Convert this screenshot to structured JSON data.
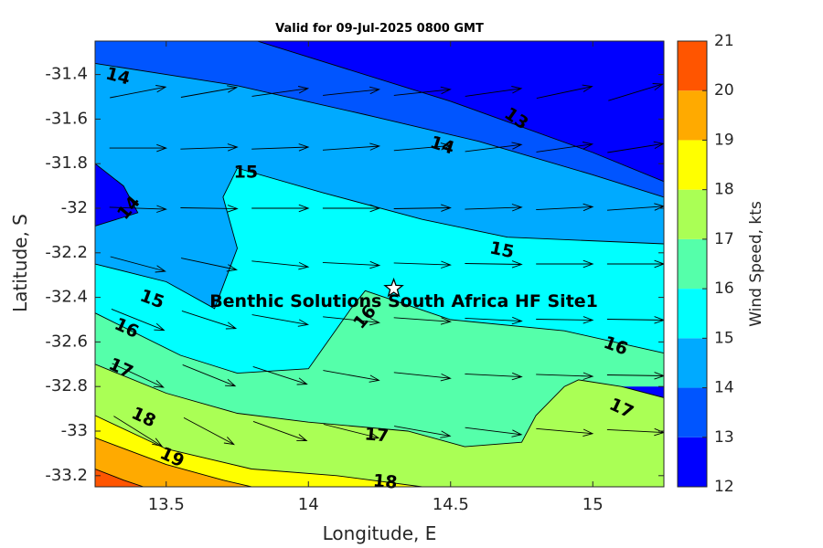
{
  "chart_data": {
    "type": "contour",
    "title": "Valid for 09-Jul-2025 0800 GMT",
    "xlabel": "Longitude, E",
    "ylabel": "Latitude, S",
    "colorbar_label": "Wind Speed, kts",
    "xlim": [
      13.25,
      15.25
    ],
    "ylim": [
      -33.25,
      -31.25
    ],
    "xticks": [
      13.5,
      14,
      14.5,
      15
    ],
    "xtick_labels": [
      "13.5",
      "14",
      "14.5",
      "15"
    ],
    "yticks": [
      -31.4,
      -31.6,
      -31.8,
      -32,
      -32.2,
      -32.4,
      -32.6,
      -32.8,
      -33,
      -33.2
    ],
    "ytick_labels": [
      "-31.4",
      "-31.6",
      "-31.8",
      "-32",
      "-32.2",
      "-32.4",
      "-32.6",
      "-32.8",
      "-33",
      "-33.2"
    ],
    "colorbar": {
      "range": [
        12,
        21
      ],
      "levels": [
        12,
        13,
        14,
        15,
        16,
        17,
        18,
        19,
        20,
        21
      ],
      "tick_labels": [
        "12",
        "13",
        "14",
        "15",
        "16",
        "17",
        "18",
        "19",
        "20",
        "21"
      ],
      "colors": [
        "#0000ff",
        "#0055ff",
        "#00aaff",
        "#00ffff",
        "#55ffaa",
        "#aaff55",
        "#ffff00",
        "#ffaa00",
        "#ff5500"
      ]
    },
    "regions": [
      {
        "band": [
          13,
          14
        ],
        "polygon": [
          [
            13.25,
            -31.25
          ],
          [
            13.82,
            -31.25
          ],
          [
            14.5,
            -31.52
          ],
          [
            15.0,
            -31.75
          ],
          [
            15.25,
            -31.88
          ],
          [
            15.25,
            -32.16
          ],
          [
            14.7,
            -32.13
          ],
          [
            14.4,
            -32.05
          ],
          [
            14.05,
            -31.93
          ],
          [
            13.75,
            -31.82
          ],
          [
            13.7,
            -31.95
          ],
          [
            13.75,
            -32.18
          ],
          [
            13.67,
            -32.45
          ],
          [
            13.5,
            -32.33
          ],
          [
            13.25,
            -32.25
          ],
          [
            13.25,
            -32.08
          ],
          [
            13.4,
            -32.02
          ],
          [
            13.35,
            -31.9
          ],
          [
            13.25,
            -31.8
          ],
          [
            13.25,
            -31.25
          ]
        ]
      },
      {
        "band": [
          14,
          15
        ],
        "polygon": [
          [
            13.25,
            -31.35
          ],
          [
            13.5,
            -31.4
          ],
          [
            13.75,
            -31.45
          ],
          [
            14.2,
            -31.58
          ],
          [
            14.6,
            -31.7
          ],
          [
            15.0,
            -31.85
          ],
          [
            15.25,
            -31.95
          ],
          [
            15.25,
            -32.16
          ],
          [
            14.7,
            -32.13
          ],
          [
            14.4,
            -32.05
          ],
          [
            14.05,
            -31.93
          ],
          [
            13.75,
            -31.82
          ],
          [
            13.7,
            -31.95
          ],
          [
            13.75,
            -32.18
          ],
          [
            13.67,
            -32.45
          ],
          [
            13.5,
            -32.33
          ],
          [
            13.25,
            -32.25
          ],
          [
            13.25,
            -32.08
          ],
          [
            13.4,
            -32.02
          ],
          [
            13.35,
            -31.9
          ],
          [
            13.25,
            -31.8
          ],
          [
            13.25,
            -31.35
          ]
        ]
      },
      {
        "band": [
          15,
          16
        ],
        "polygon": [
          [
            13.25,
            -32.25
          ],
          [
            13.5,
            -32.33
          ],
          [
            13.67,
            -32.45
          ],
          [
            13.75,
            -32.18
          ],
          [
            13.7,
            -31.95
          ],
          [
            13.75,
            -31.82
          ],
          [
            14.05,
            -31.93
          ],
          [
            14.4,
            -32.05
          ],
          [
            14.7,
            -32.13
          ],
          [
            15.25,
            -32.16
          ],
          [
            15.25,
            -32.65
          ],
          [
            14.9,
            -32.55
          ],
          [
            14.5,
            -32.5
          ],
          [
            14.2,
            -32.37
          ],
          [
            14.15,
            -32.45
          ],
          [
            14.0,
            -32.72
          ],
          [
            13.75,
            -32.74
          ],
          [
            13.55,
            -32.66
          ],
          [
            13.25,
            -32.47
          ],
          [
            13.25,
            -32.25
          ]
        ]
      },
      {
        "band": [
          16,
          17
        ],
        "polygon": [
          [
            13.25,
            -32.47
          ],
          [
            13.55,
            -32.66
          ],
          [
            13.75,
            -32.74
          ],
          [
            14.0,
            -32.72
          ],
          [
            14.15,
            -32.45
          ],
          [
            14.2,
            -32.37
          ],
          [
            14.5,
            -32.5
          ],
          [
            14.9,
            -32.55
          ],
          [
            15.25,
            -32.65
          ],
          [
            15.25,
            -32.8
          ],
          [
            15.1,
            -32.8
          ],
          [
            14.95,
            -32.77
          ],
          [
            14.9,
            -32.8
          ],
          [
            14.8,
            -32.93
          ],
          [
            14.75,
            -33.05
          ],
          [
            14.55,
            -33.07
          ],
          [
            14.35,
            -33.0
          ],
          [
            14.0,
            -32.96
          ],
          [
            13.75,
            -32.92
          ],
          [
            13.5,
            -32.83
          ],
          [
            13.25,
            -32.7
          ],
          [
            13.25,
            -32.47
          ]
        ]
      },
      {
        "band": [
          17,
          18
        ],
        "polygon": [
          [
            13.25,
            -32.7
          ],
          [
            13.5,
            -32.83
          ],
          [
            13.75,
            -32.92
          ],
          [
            14.0,
            -32.96
          ],
          [
            14.35,
            -33.0
          ],
          [
            14.55,
            -33.07
          ],
          [
            14.75,
            -33.05
          ],
          [
            14.8,
            -32.93
          ],
          [
            14.9,
            -32.8
          ],
          [
            14.95,
            -32.77
          ],
          [
            15.1,
            -32.8
          ],
          [
            15.25,
            -32.85
          ],
          [
            15.25,
            -33.25
          ],
          [
            14.4,
            -33.25
          ],
          [
            14.1,
            -33.2
          ],
          [
            13.8,
            -33.17
          ],
          [
            13.5,
            -33.08
          ],
          [
            13.25,
            -32.93
          ],
          [
            13.25,
            -32.7
          ]
        ]
      },
      {
        "band": [
          18,
          19
        ],
        "polygon": [
          [
            13.25,
            -32.93
          ],
          [
            13.5,
            -33.08
          ],
          [
            13.8,
            -33.17
          ],
          [
            14.1,
            -33.2
          ],
          [
            14.4,
            -33.25
          ],
          [
            13.25,
            -33.25
          ],
          [
            13.25,
            -32.93
          ]
        ]
      },
      {
        "band": [
          19,
          20
        ],
        "polygon": [
          [
            13.25,
            -33.03
          ],
          [
            13.5,
            -33.15
          ],
          [
            13.7,
            -33.22
          ],
          [
            13.8,
            -33.25
          ],
          [
            13.25,
            -33.25
          ],
          [
            13.25,
            -33.03
          ]
        ]
      },
      {
        "band": [
          20,
          21
        ],
        "polygon": [
          [
            13.25,
            -33.17
          ],
          [
            13.35,
            -33.22
          ],
          [
            13.42,
            -33.25
          ],
          [
            13.25,
            -33.25
          ],
          [
            13.25,
            -33.17
          ]
        ]
      }
    ],
    "contours": [
      {
        "level": 13,
        "points": [
          [
            13.82,
            -31.25
          ],
          [
            14.5,
            -31.52
          ],
          [
            15.0,
            -31.75
          ],
          [
            15.25,
            -31.88
          ]
        ]
      },
      {
        "level": 14,
        "points": [
          [
            13.25,
            -31.35
          ],
          [
            13.5,
            -31.4
          ],
          [
            13.75,
            -31.45
          ],
          [
            14.2,
            -31.58
          ],
          [
            14.6,
            -31.7
          ],
          [
            15.0,
            -31.85
          ],
          [
            15.25,
            -31.95
          ]
        ]
      },
      {
        "level": 14,
        "points": [
          [
            13.25,
            -31.8
          ],
          [
            13.35,
            -31.9
          ],
          [
            13.4,
            -32.02
          ],
          [
            13.25,
            -32.08
          ]
        ]
      },
      {
        "level": 15,
        "points": [
          [
            13.25,
            -32.25
          ],
          [
            13.5,
            -32.33
          ],
          [
            13.67,
            -32.45
          ],
          [
            13.75,
            -32.18
          ],
          [
            13.7,
            -31.95
          ],
          [
            13.75,
            -31.82
          ],
          [
            14.05,
            -31.93
          ],
          [
            14.4,
            -32.05
          ],
          [
            14.7,
            -32.13
          ],
          [
            15.25,
            -32.16
          ]
        ]
      },
      {
        "level": 16,
        "points": [
          [
            13.25,
            -32.47
          ],
          [
            13.55,
            -32.66
          ],
          [
            13.75,
            -32.74
          ],
          [
            14.0,
            -32.72
          ],
          [
            14.15,
            -32.45
          ],
          [
            14.2,
            -32.37
          ],
          [
            14.5,
            -32.5
          ],
          [
            14.9,
            -32.55
          ],
          [
            15.25,
            -32.65
          ]
        ]
      },
      {
        "level": 17,
        "points": [
          [
            13.25,
            -32.7
          ],
          [
            13.5,
            -32.83
          ],
          [
            13.75,
            -32.92
          ],
          [
            14.0,
            -32.96
          ],
          [
            14.35,
            -33.0
          ],
          [
            14.55,
            -33.07
          ],
          [
            14.75,
            -33.05
          ],
          [
            14.8,
            -32.93
          ],
          [
            14.9,
            -32.8
          ],
          [
            14.95,
            -32.77
          ],
          [
            15.1,
            -32.8
          ],
          [
            15.25,
            -32.85
          ]
        ]
      },
      {
        "level": 18,
        "points": [
          [
            13.25,
            -32.93
          ],
          [
            13.5,
            -33.08
          ],
          [
            13.8,
            -33.17
          ],
          [
            14.1,
            -33.2
          ],
          [
            14.4,
            -33.25
          ]
        ]
      },
      {
        "level": 19,
        "points": [
          [
            13.25,
            -33.03
          ],
          [
            13.5,
            -33.15
          ],
          [
            13.7,
            -33.22
          ],
          [
            13.8,
            -33.25
          ]
        ]
      },
      {
        "level": 20,
        "points": [
          [
            13.25,
            -33.17
          ],
          [
            13.35,
            -33.22
          ],
          [
            13.42,
            -33.25
          ]
        ]
      }
    ],
    "contour_labels": [
      {
        "text": "13",
        "lon": 14.73,
        "lat": -31.6,
        "angle": 35
      },
      {
        "text": "14",
        "lon": 13.33,
        "lat": -31.41,
        "angle": 15
      },
      {
        "text": "14",
        "lon": 14.47,
        "lat": -31.72,
        "angle": 18
      },
      {
        "text": "14",
        "lon": 13.37,
        "lat": -32.0,
        "angle": -50
      },
      {
        "text": "15",
        "lon": 13.78,
        "lat": -31.84,
        "angle": 0
      },
      {
        "text": "15",
        "lon": 14.68,
        "lat": -32.19,
        "angle": 12
      },
      {
        "text": "15",
        "lon": 13.45,
        "lat": -32.41,
        "angle": 20
      },
      {
        "text": "16",
        "lon": 13.36,
        "lat": -32.54,
        "angle": 25
      },
      {
        "text": "16",
        "lon": 14.2,
        "lat": -32.49,
        "angle": -50
      },
      {
        "text": "16",
        "lon": 15.08,
        "lat": -32.62,
        "angle": 20
      },
      {
        "text": "17",
        "lon": 13.34,
        "lat": -32.72,
        "angle": 25
      },
      {
        "text": "17",
        "lon": 14.24,
        "lat": -33.02,
        "angle": 5
      },
      {
        "text": "17",
        "lon": 15.1,
        "lat": -32.9,
        "angle": 25
      },
      {
        "text": "18",
        "lon": 13.42,
        "lat": -32.94,
        "angle": 25
      },
      {
        "text": "18",
        "lon": 14.27,
        "lat": -33.23,
        "angle": 5
      },
      {
        "text": "19",
        "lon": 13.52,
        "lat": -33.12,
        "angle": 25
      }
    ],
    "vector_grid": {
      "lons": [
        13.4,
        13.65,
        13.9,
        14.15,
        14.4,
        14.65,
        14.9,
        15.15
      ],
      "lats": [
        -31.48,
        -31.73,
        -32.0,
        -32.25,
        -32.5,
        -32.75,
        -33.0
      ],
      "directions_deg": [
        [
          11,
          10,
          8,
          6,
          6,
          8,
          12,
          17
        ],
        [
          0,
          2,
          2,
          4,
          5,
          7,
          8,
          9
        ],
        [
          -2,
          -1,
          0,
          0,
          1,
          2,
          3,
          4
        ],
        [
          -15,
          -12,
          -6,
          -3,
          -2,
          -1,
          0,
          0
        ],
        [
          -22,
          -18,
          -10,
          -6,
          -4,
          -3,
          -1,
          -1
        ],
        [
          -25,
          -22,
          -18,
          -10,
          -6,
          -3,
          -2,
          -1
        ],
        [
          -32,
          -28,
          -20,
          -14,
          -10,
          -7,
          -5,
          -3
        ]
      ]
    },
    "site": {
      "name": "Benthic Solutions South Africa HF Site1",
      "lon": 14.3,
      "lat": -32.36
    }
  }
}
